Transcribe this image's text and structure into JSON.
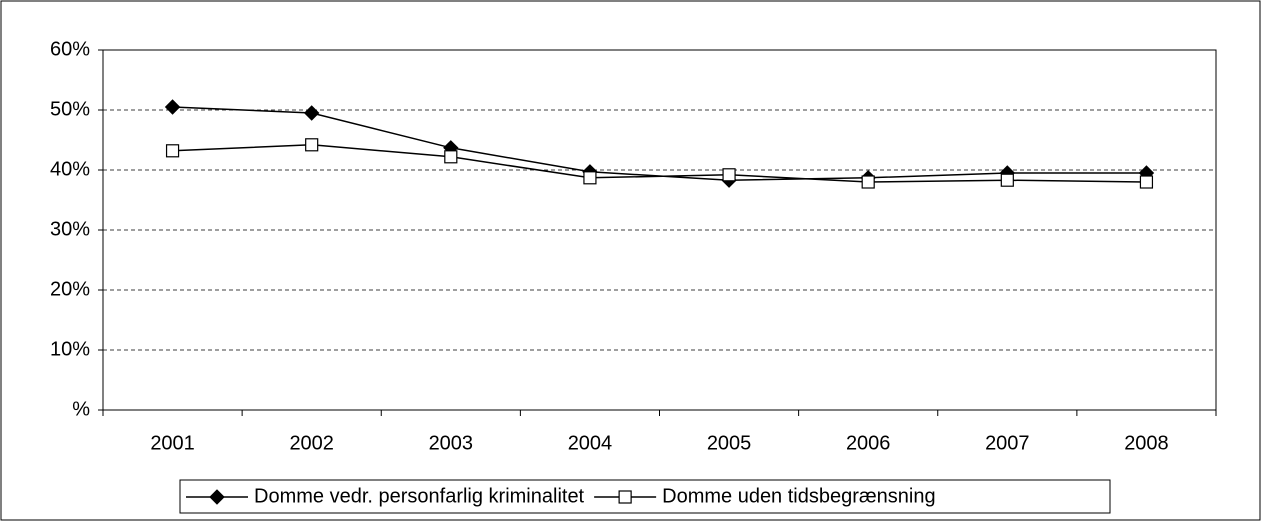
{
  "chart_data": {
    "type": "line",
    "categories": [
      "2001",
      "2002",
      "2003",
      "2004",
      "2005",
      "2006",
      "2007",
      "2008"
    ],
    "series": [
      {
        "name": "Domme vedr. personfarlig kriminalitet",
        "color": "#000000",
        "marker": "diamond",
        "values": [
          50.5,
          49.5,
          43.7,
          39.7,
          38.3,
          38.7,
          39.5,
          39.5
        ]
      },
      {
        "name": "Domme uden tidsbegrænsning",
        "color": "#000000",
        "marker": "square",
        "values": [
          43.2,
          44.2,
          42.2,
          38.7,
          39.2,
          38.0,
          38.3,
          38.0
        ]
      }
    ],
    "ylim": [
      0,
      60
    ],
    "yticks": [
      {
        "value": 0,
        "label": "%"
      },
      {
        "value": 10,
        "label": "10%"
      },
      {
        "value": 20,
        "label": "20%"
      },
      {
        "value": 30,
        "label": "30%"
      },
      {
        "value": 40,
        "label": "40%"
      },
      {
        "value": 50,
        "label": "50%"
      },
      {
        "value": 60,
        "label": "60%"
      }
    ],
    "grid": true,
    "legend": "bottom"
  }
}
